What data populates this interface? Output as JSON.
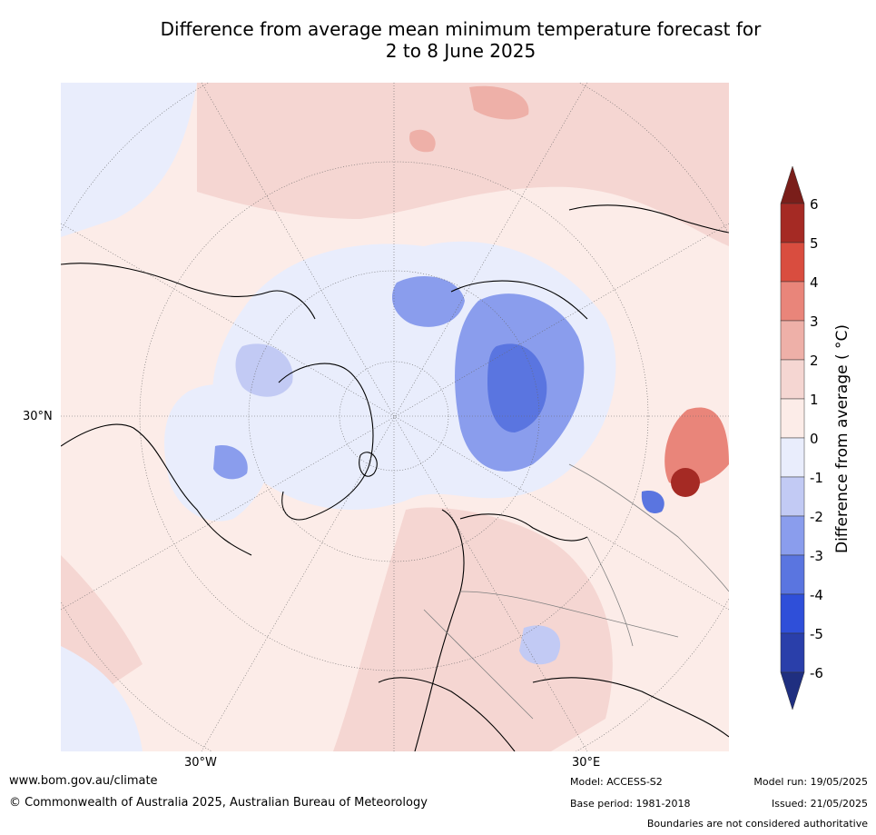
{
  "title_line1": "Difference from average mean minimum temperature forecast for",
  "title_line2": "2 to 8 June 2025",
  "map": {
    "projection": "north-polar-stereographic",
    "lat_label": "30°N",
    "lon_labels": [
      "30°W",
      "30°E"
    ]
  },
  "colorbar": {
    "label": "Difference from average ( °C)",
    "ticks": [
      "6",
      "5",
      "4",
      "3",
      "2",
      "1",
      "0",
      "-1",
      "-2",
      "-3",
      "-4",
      "-5",
      "-6"
    ],
    "colors": [
      "#a52a24",
      "#d94d3f",
      "#e9857a",
      "#eeb0a8",
      "#f5d6d2",
      "#fcece8",
      "#e9edfc",
      "#c2caf4",
      "#8a9ded",
      "#5a75e0",
      "#2f4fd9",
      "#2a3faa"
    ],
    "over_color": "#7a1e1a",
    "under_color": "#1f2f80"
  },
  "footer": {
    "website": "www.bom.gov.au/climate",
    "copyright": "© Commonwealth of Australia 2025, Australian Bureau of Meteorology",
    "model": "Model: ACCESS-S2",
    "base_period": "Base period: 1981-2018",
    "model_run": "Model run: 19/05/2025",
    "issued": "Issued: 21/05/2025",
    "disclaimer": "Boundaries are not considered authoritative"
  }
}
